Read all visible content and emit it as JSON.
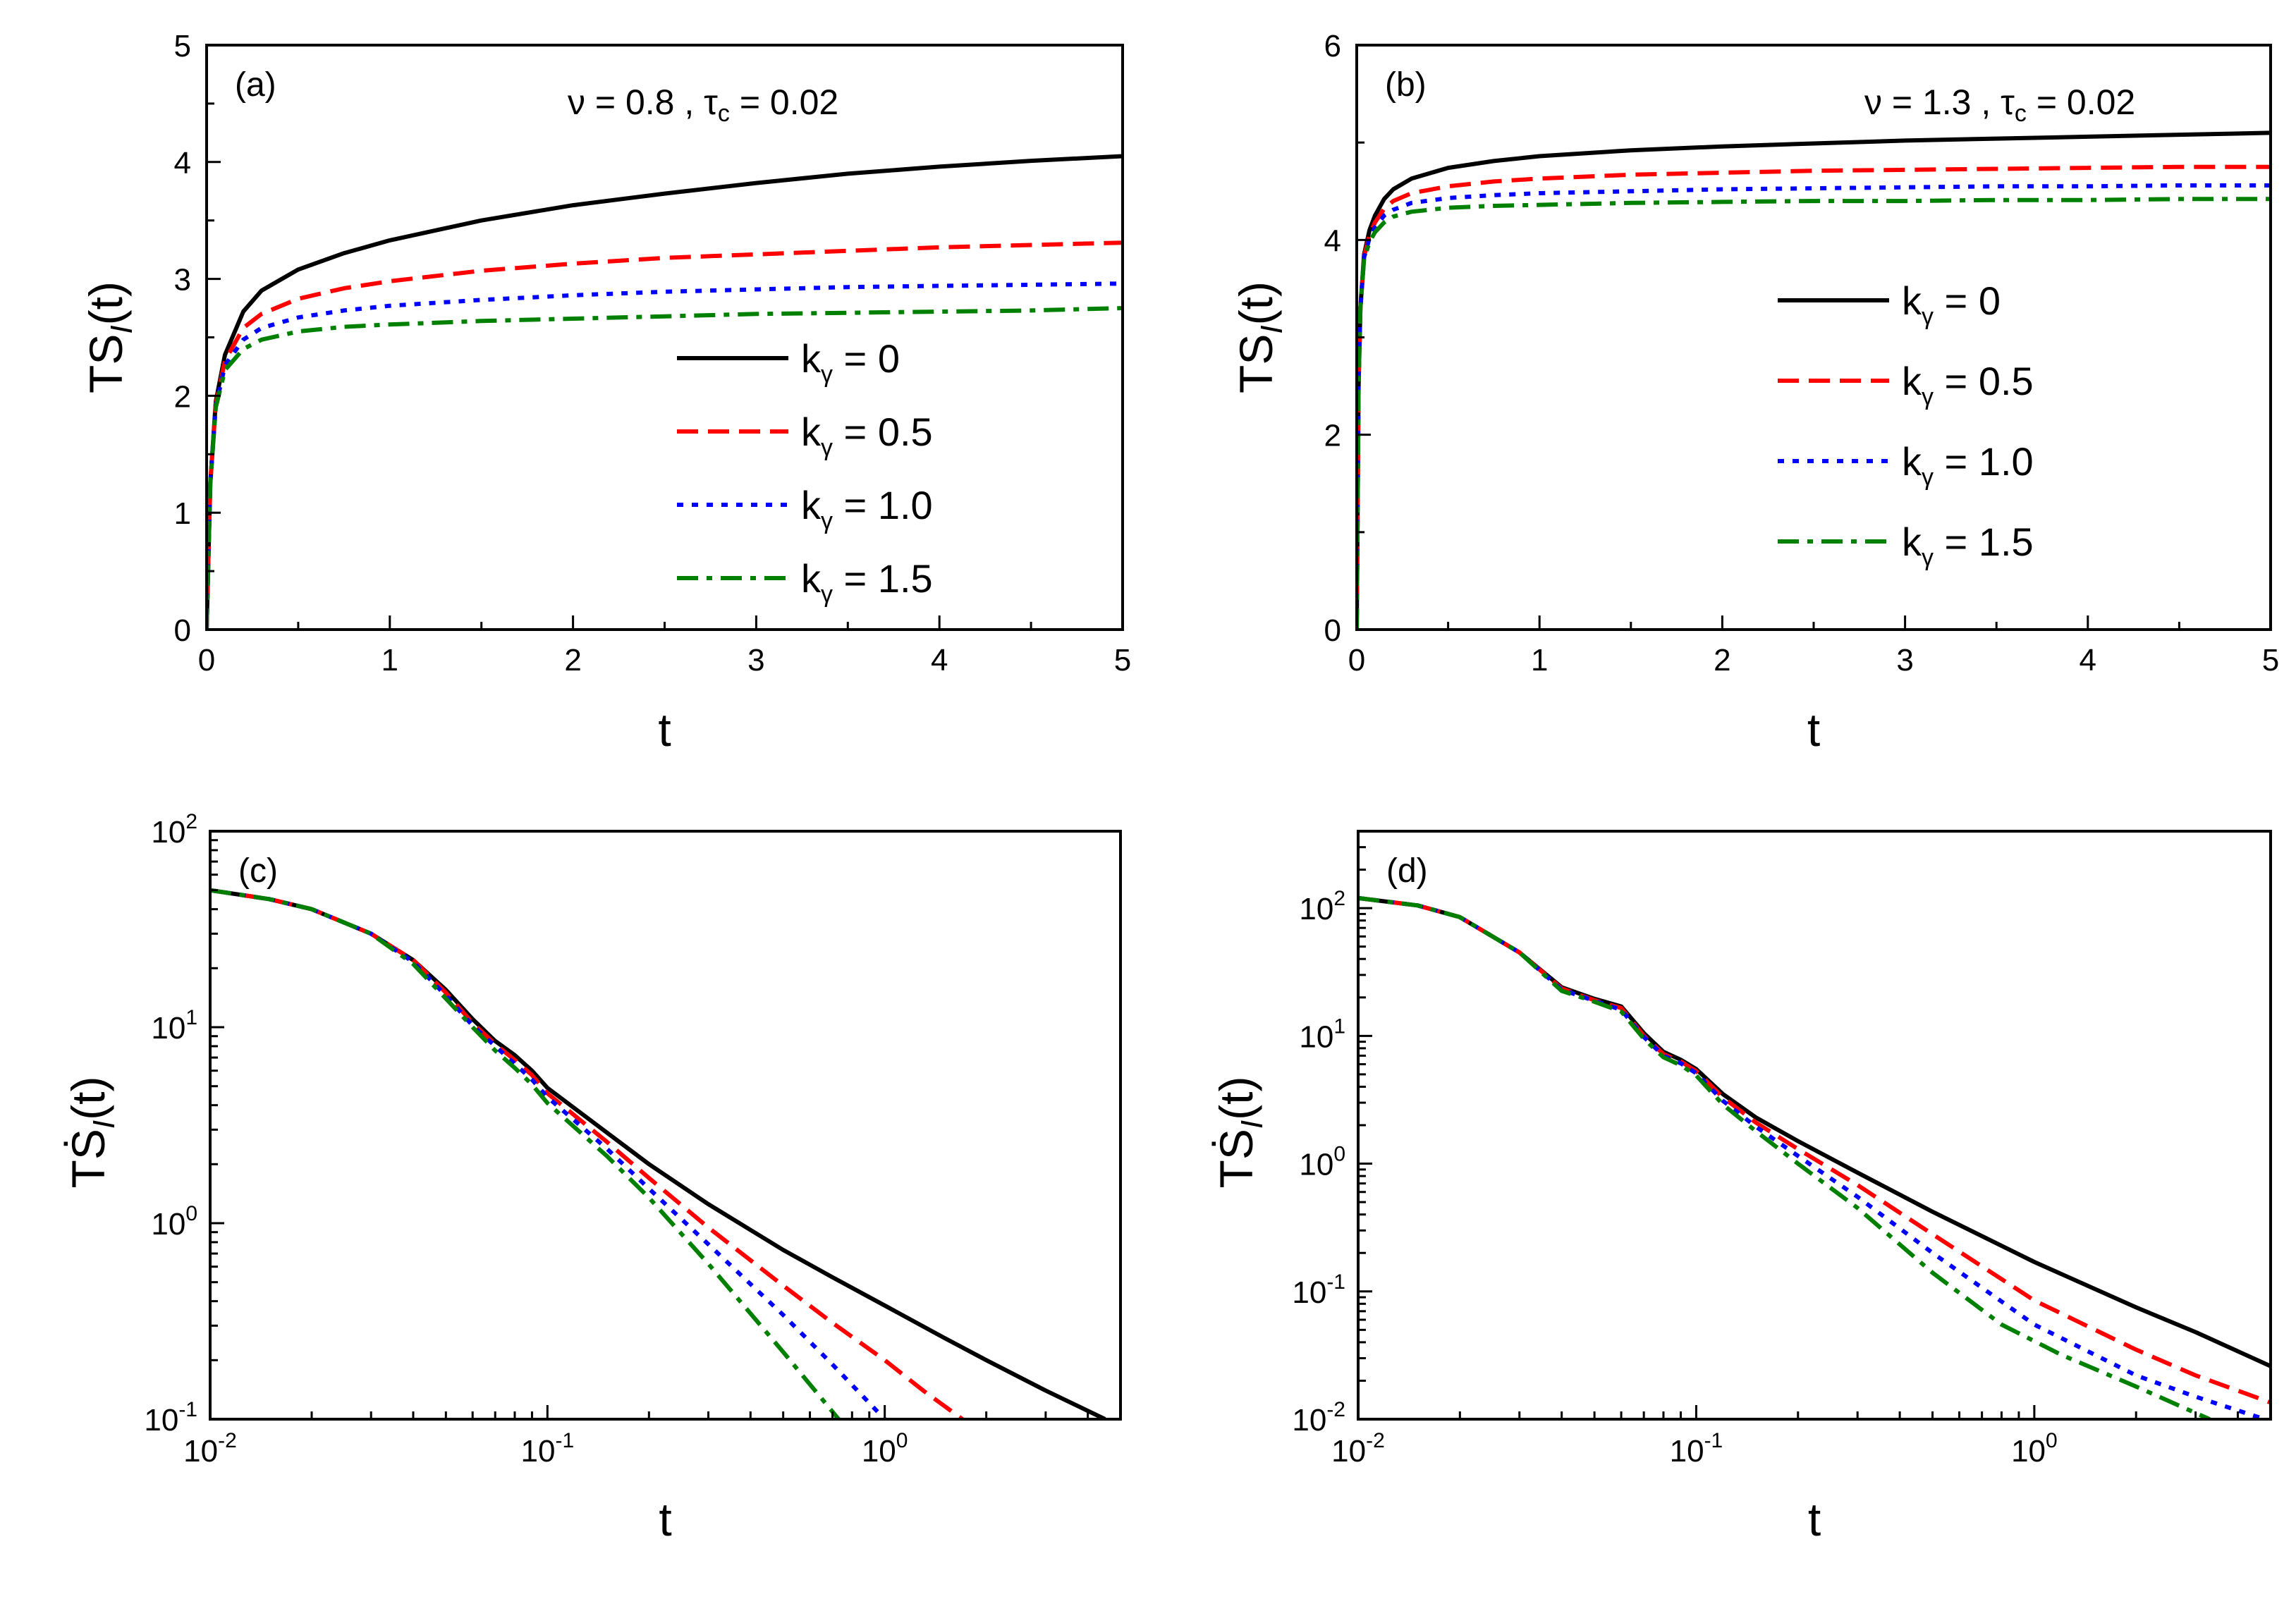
{
  "colors": {
    "k0": "#000000",
    "k05": "#ff0000",
    "k10": "#0000ff",
    "k15": "#008000"
  },
  "legend": {
    "entries": [
      "kγ = 0",
      "kγ = 0.5",
      "kγ = 1.0",
      "kγ = 1.5"
    ]
  },
  "chart_data": [
    {
      "id": "a",
      "type": "line",
      "tag": "(a)",
      "annotation": "ν = 0.8 , τc = 0.02",
      "xlabel": "t",
      "ylabel": "TS_I(t)",
      "xlim": [
        0,
        5
      ],
      "ylim": [
        0,
        5
      ],
      "xticks": [
        0,
        1,
        2,
        3,
        4,
        5
      ],
      "yticks": [
        0,
        1,
        2,
        3,
        4,
        5
      ],
      "xscale": "linear",
      "yscale": "linear",
      "legend_position": "center-right",
      "series": [
        {
          "name": "kγ = 0",
          "style": "solid",
          "x": [
            0,
            0.02,
            0.05,
            0.1,
            0.2,
            0.3,
            0.5,
            0.75,
            1,
            1.5,
            2,
            2.5,
            3,
            3.5,
            4,
            4.5,
            5
          ],
          "y": [
            0,
            1.25,
            1.95,
            2.35,
            2.72,
            2.9,
            3.08,
            3.22,
            3.33,
            3.5,
            3.63,
            3.73,
            3.82,
            3.9,
            3.96,
            4.01,
            4.05
          ]
        },
        {
          "name": "kγ = 0.5",
          "style": "dashed",
          "x": [
            0,
            0.02,
            0.05,
            0.1,
            0.2,
            0.3,
            0.5,
            0.75,
            1,
            1.5,
            2,
            2.5,
            3,
            3.5,
            4,
            4.5,
            5
          ],
          "y": [
            0,
            1.25,
            1.93,
            2.3,
            2.58,
            2.7,
            2.83,
            2.92,
            2.98,
            3.07,
            3.13,
            3.18,
            3.21,
            3.24,
            3.27,
            3.29,
            3.31
          ]
        },
        {
          "name": "kγ = 1.0",
          "style": "dotted",
          "x": [
            0,
            0.02,
            0.05,
            0.1,
            0.2,
            0.3,
            0.5,
            0.75,
            1,
            1.5,
            2,
            2.5,
            3,
            3.5,
            4,
            4.5,
            5
          ],
          "y": [
            0,
            1.25,
            1.91,
            2.26,
            2.48,
            2.58,
            2.67,
            2.73,
            2.77,
            2.82,
            2.86,
            2.89,
            2.91,
            2.93,
            2.94,
            2.95,
            2.96
          ]
        },
        {
          "name": "kγ = 1.5",
          "style": "dashdot",
          "x": [
            0,
            0.02,
            0.05,
            0.1,
            0.2,
            0.3,
            0.5,
            0.75,
            1,
            1.5,
            2,
            2.5,
            3,
            3.5,
            4,
            4.5,
            5
          ],
          "y": [
            0,
            1.25,
            1.9,
            2.22,
            2.4,
            2.48,
            2.55,
            2.59,
            2.61,
            2.64,
            2.66,
            2.68,
            2.7,
            2.71,
            2.72,
            2.73,
            2.75
          ]
        }
      ]
    },
    {
      "id": "b",
      "type": "line",
      "tag": "(b)",
      "annotation": "ν = 1.3 , τc = 0.02",
      "xlabel": "t",
      "ylabel": "TS_I(t)",
      "xlim": [
        0,
        5
      ],
      "ylim": [
        0,
        6
      ],
      "xticks": [
        0,
        1,
        2,
        3,
        4,
        5
      ],
      "yticks": [
        0,
        2,
        4,
        6
      ],
      "xscale": "linear",
      "yscale": "linear",
      "legend_position": "center-right",
      "series": [
        {
          "name": "kγ = 0",
          "style": "solid",
          "x": [
            0,
            0.01,
            0.02,
            0.04,
            0.07,
            0.1,
            0.15,
            0.2,
            0.3,
            0.5,
            0.75,
            1,
            1.5,
            2,
            2.5,
            3,
            3.5,
            4,
            4.5,
            5
          ],
          "y": [
            0,
            2.5,
            3.3,
            3.85,
            4.1,
            4.25,
            4.42,
            4.52,
            4.63,
            4.74,
            4.81,
            4.86,
            4.92,
            4.96,
            4.99,
            5.02,
            5.04,
            5.06,
            5.08,
            5.1
          ]
        },
        {
          "name": "kγ = 0.5",
          "style": "dashed",
          "x": [
            0,
            0.01,
            0.02,
            0.04,
            0.07,
            0.1,
            0.15,
            0.2,
            0.3,
            0.5,
            0.75,
            1,
            1.5,
            2,
            2.5,
            3,
            3.5,
            4,
            4.5,
            5
          ],
          "y": [
            0,
            2.5,
            3.3,
            3.83,
            4.05,
            4.18,
            4.32,
            4.4,
            4.48,
            4.55,
            4.6,
            4.63,
            4.67,
            4.69,
            4.71,
            4.72,
            4.73,
            4.74,
            4.75,
            4.75
          ]
        },
        {
          "name": "kγ = 1.0",
          "style": "dotted",
          "x": [
            0,
            0.01,
            0.02,
            0.04,
            0.07,
            0.1,
            0.15,
            0.2,
            0.3,
            0.5,
            0.75,
            1,
            1.5,
            2,
            2.5,
            3,
            3.5,
            4,
            4.5,
            5
          ],
          "y": [
            0,
            2.5,
            3.3,
            3.82,
            4.02,
            4.13,
            4.25,
            4.31,
            4.38,
            4.43,
            4.46,
            4.48,
            4.5,
            4.52,
            4.53,
            4.54,
            4.55,
            4.55,
            4.56,
            4.56
          ]
        },
        {
          "name": "kγ = 1.5",
          "style": "dashdot",
          "x": [
            0,
            0.01,
            0.02,
            0.04,
            0.07,
            0.1,
            0.15,
            0.2,
            0.3,
            0.5,
            0.75,
            1,
            1.5,
            2,
            2.5,
            3,
            3.5,
            4,
            4.5,
            5
          ],
          "y": [
            0,
            2.5,
            3.3,
            3.8,
            3.98,
            4.08,
            4.18,
            4.24,
            4.29,
            4.33,
            4.35,
            4.36,
            4.38,
            4.39,
            4.4,
            4.4,
            4.41,
            4.41,
            4.42,
            4.42
          ]
        }
      ]
    },
    {
      "id": "c",
      "type": "line",
      "tag": "(c)",
      "annotation": "",
      "xlabel": "t",
      "ylabel": "TṠ_I(t)",
      "xlim": [
        0.01,
        5
      ],
      "ylim": [
        0.1,
        100
      ],
      "xscale": "log",
      "yscale": "log",
      "xticks": [
        0.01,
        0.1,
        1
      ],
      "xticklabels": [
        [
          "10",
          "-2"
        ],
        [
          "10",
          "-1"
        ],
        [
          "10",
          "0"
        ]
      ],
      "yticks": [
        0.1,
        1,
        10,
        100
      ],
      "yticklabels": [
        [
          "10",
          "-1"
        ],
        [
          "10",
          "0"
        ],
        [
          "10",
          "1"
        ],
        [
          "10",
          "2"
        ]
      ],
      "series": [
        {
          "name": "kγ = 0",
          "style": "solid",
          "x": [
            0.01,
            0.015,
            0.02,
            0.03,
            0.04,
            0.05,
            0.06,
            0.07,
            0.08,
            0.09,
            0.1,
            0.15,
            0.2,
            0.3,
            0.5,
            0.7,
            1,
            1.5,
            2,
            3,
            4.5
          ],
          "y": [
            50,
            45,
            40,
            30,
            22,
            15.5,
            11,
            8.5,
            7.2,
            6,
            4.9,
            2.9,
            2.0,
            1.25,
            0.73,
            0.53,
            0.38,
            0.26,
            0.2,
            0.14,
            0.1
          ]
        },
        {
          "name": "kγ = 0.5",
          "style": "dashed",
          "x": [
            0.01,
            0.015,
            0.02,
            0.03,
            0.04,
            0.05,
            0.06,
            0.07,
            0.08,
            0.09,
            0.1,
            0.15,
            0.2,
            0.3,
            0.5,
            0.7,
            1,
            1.3,
            1.7
          ],
          "y": [
            50,
            45,
            40,
            30,
            22,
            15,
            10.5,
            8.2,
            6.8,
            5.7,
            4.6,
            2.6,
            1.7,
            0.95,
            0.48,
            0.31,
            0.2,
            0.14,
            0.1
          ]
        },
        {
          "name": "kγ = 1.0",
          "style": "dotted",
          "x": [
            0.01,
            0.015,
            0.02,
            0.03,
            0.04,
            0.05,
            0.06,
            0.07,
            0.08,
            0.09,
            0.1,
            0.15,
            0.2,
            0.3,
            0.5,
            0.7,
            1.0
          ],
          "y": [
            50,
            45,
            40,
            30,
            21.5,
            14.5,
            10.2,
            8.0,
            6.5,
            5.4,
            4.4,
            2.4,
            1.5,
            0.78,
            0.34,
            0.19,
            0.1
          ]
        },
        {
          "name": "kγ = 1.5",
          "style": "dashdot",
          "x": [
            0.01,
            0.015,
            0.02,
            0.03,
            0.04,
            0.05,
            0.06,
            0.07,
            0.08,
            0.09,
            0.1,
            0.15,
            0.2,
            0.3,
            0.5,
            0.73
          ],
          "y": [
            50,
            45,
            40,
            30,
            21,
            14,
            10,
            7.6,
            6.2,
            5.1,
            4.1,
            2.2,
            1.35,
            0.62,
            0.22,
            0.1
          ]
        }
      ]
    },
    {
      "id": "d",
      "type": "line",
      "tag": "(d)",
      "annotation": "",
      "xlabel": "t",
      "ylabel": "TṠ_I(t)",
      "xlim": [
        0.01,
        5
      ],
      "ylim": [
        0.01,
        400
      ],
      "xscale": "log",
      "yscale": "log",
      "xticks": [
        0.01,
        0.1,
        1
      ],
      "xticklabels": [
        [
          "10",
          "-2"
        ],
        [
          "10",
          "-1"
        ],
        [
          "10",
          "0"
        ]
      ],
      "yticks": [
        0.01,
        0.1,
        1,
        10,
        100
      ],
      "yticklabels": [
        [
          "10",
          "-2"
        ],
        [
          "10",
          "-1"
        ],
        [
          "10",
          "0"
        ],
        [
          "10",
          "1"
        ],
        [
          "10",
          "2"
        ]
      ],
      "series": [
        {
          "name": "kγ = 0",
          "style": "solid",
          "x": [
            0.01,
            0.015,
            0.02,
            0.03,
            0.04,
            0.05,
            0.06,
            0.07,
            0.08,
            0.09,
            0.1,
            0.12,
            0.15,
            0.2,
            0.3,
            0.5,
            1,
            2,
            3,
            5
          ],
          "y": [
            120,
            105,
            85,
            45,
            24,
            19.5,
            17,
            10.5,
            7.5,
            6.5,
            5.5,
            3.5,
            2.3,
            1.5,
            0.85,
            0.42,
            0.17,
            0.075,
            0.048,
            0.026
          ]
        },
        {
          "name": "kγ = 0.5",
          "style": "dashed",
          "x": [
            0.01,
            0.015,
            0.02,
            0.03,
            0.04,
            0.05,
            0.06,
            0.07,
            0.08,
            0.09,
            0.1,
            0.12,
            0.15,
            0.2,
            0.3,
            0.5,
            1,
            2,
            3,
            5
          ],
          "y": [
            120,
            105,
            85,
            45,
            23.5,
            19,
            16.5,
            10,
            7.2,
            6.3,
            5.3,
            3.3,
            2.1,
            1.3,
            0.68,
            0.28,
            0.085,
            0.035,
            0.022,
            0.0135
          ]
        },
        {
          "name": "kγ = 1.0",
          "style": "dotted",
          "x": [
            0.01,
            0.015,
            0.02,
            0.03,
            0.04,
            0.05,
            0.06,
            0.07,
            0.08,
            0.09,
            0.1,
            0.12,
            0.15,
            0.2,
            0.3,
            0.5,
            1,
            2,
            3,
            4.8
          ],
          "y": [
            120,
            105,
            85,
            45,
            23,
            18.8,
            16,
            9.8,
            7,
            6.1,
            5.1,
            3.1,
            1.95,
            1.15,
            0.55,
            0.2,
            0.055,
            0.022,
            0.015,
            0.01
          ]
        },
        {
          "name": "kγ = 1.5",
          "style": "dashdot",
          "x": [
            0.01,
            0.015,
            0.02,
            0.03,
            0.04,
            0.05,
            0.06,
            0.07,
            0.08,
            0.09,
            0.1,
            0.12,
            0.15,
            0.2,
            0.3,
            0.5,
            0.8,
            1.2,
            2,
            3.3
          ],
          "y": [
            120,
            105,
            85,
            45,
            22.5,
            18.5,
            15.5,
            9.5,
            6.8,
            5.9,
            4.9,
            2.9,
            1.8,
            1.0,
            0.45,
            0.14,
            0.055,
            0.032,
            0.018,
            0.01
          ]
        }
      ]
    }
  ]
}
